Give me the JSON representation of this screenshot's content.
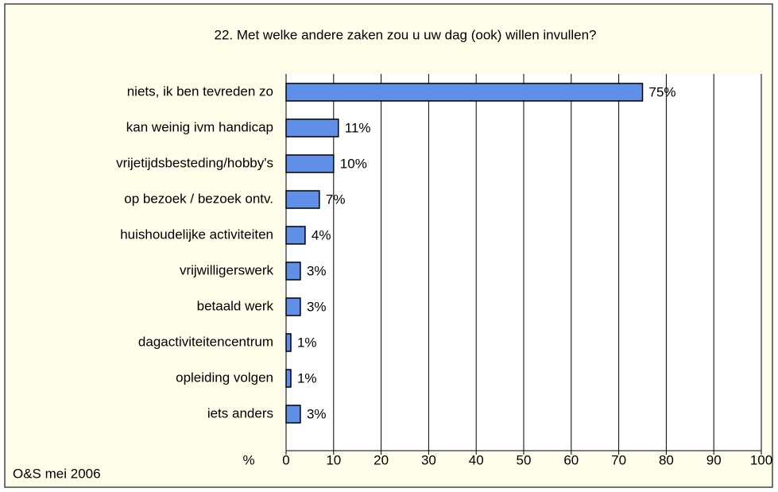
{
  "chart_data": {
    "type": "bar",
    "orientation": "horizontal",
    "title": "22. Met welke andere zaken zou u uw dag (ook) willen invullen?",
    "x_label": "%",
    "source": "O&S mei 2006",
    "categories": [
      "niets, ik ben tevreden zo",
      "kan weinig ivm handicap",
      "vrijetijdsbesteding/hobby's",
      "op bezoek / bezoek ontv.",
      "huishoudelijke activiteiten",
      "vrijwilligerswerk",
      "betaald werk",
      "dagactiviteitencentrum",
      "opleiding volgen",
      "iets anders"
    ],
    "values": [
      75,
      11,
      10,
      7,
      4,
      3,
      3,
      1,
      1,
      3
    ],
    "value_labels": [
      "75%",
      "11%",
      "10%",
      "7%",
      "4%",
      "3%",
      "3%",
      "1%",
      "1%",
      "3%"
    ],
    "color": "#5f8fe6",
    "xlim": [
      0,
      100
    ],
    "xticks": [
      0,
      10,
      20,
      30,
      40,
      50,
      60,
      70,
      80,
      90,
      100
    ],
    "grid": true
  }
}
